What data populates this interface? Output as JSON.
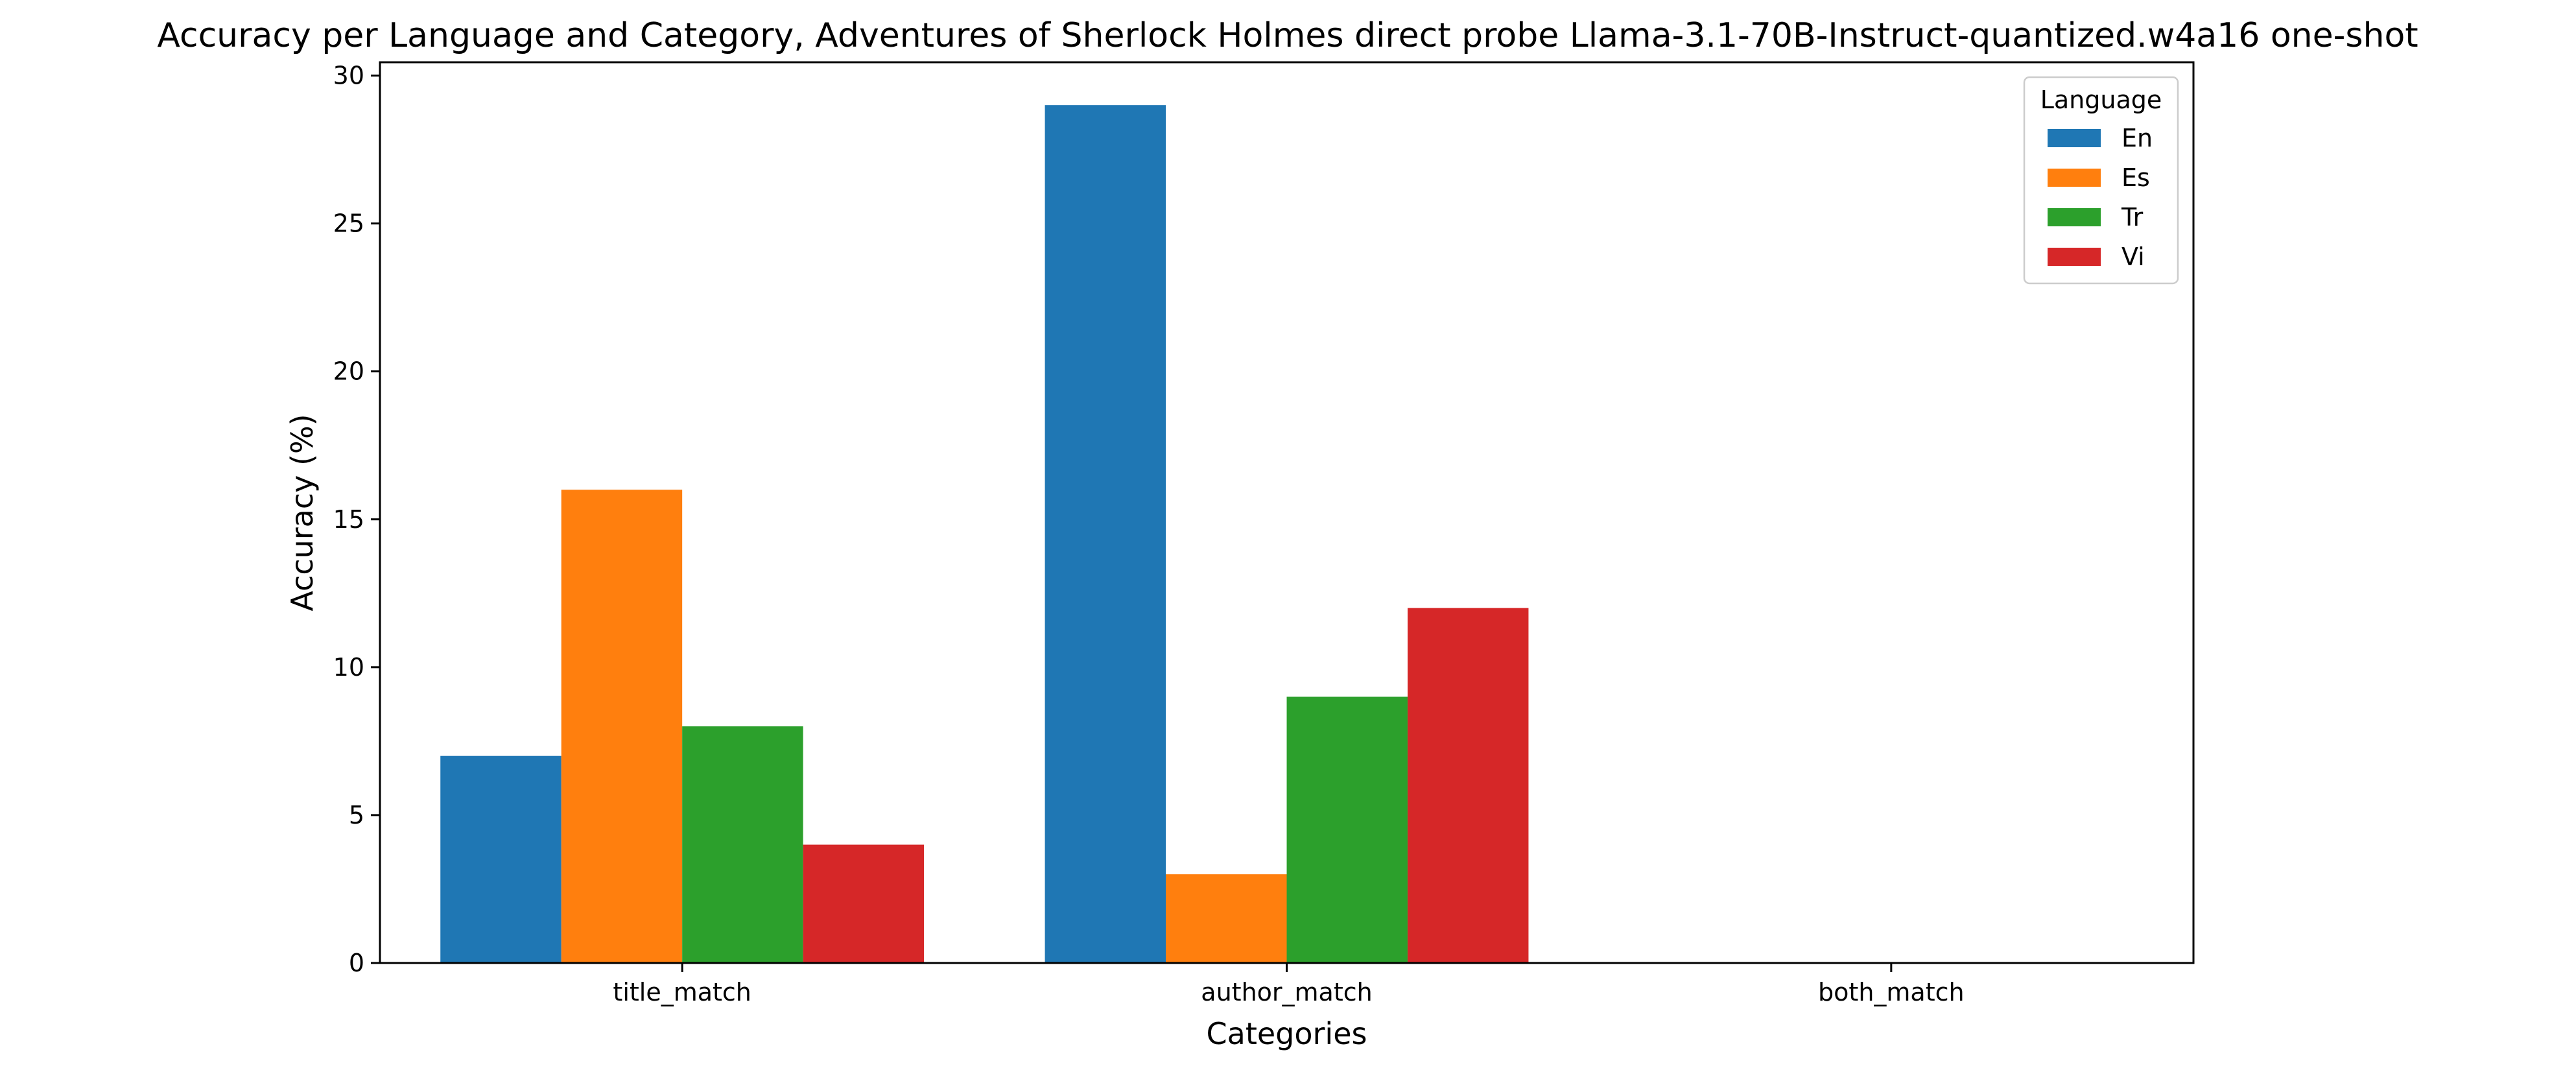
{
  "chart_data": {
    "type": "bar",
    "title": "Accuracy per Language and Category, Adventures of Sherlock Holmes direct probe Llama-3.1-70B-Instruct-quantized.w4a16 one-shot",
    "xlabel": "Categories",
    "ylabel": "Accuracy (%)",
    "categories": [
      "title_match",
      "author_match",
      "both_match"
    ],
    "series": [
      {
        "name": "En",
        "values": [
          7,
          29,
          0
        ],
        "color": "#1f77b4"
      },
      {
        "name": "Es",
        "values": [
          16,
          3,
          0
        ],
        "color": "#ff7f0e"
      },
      {
        "name": "Tr",
        "values": [
          8,
          9,
          0
        ],
        "color": "#2ca02c"
      },
      {
        "name": "Vi",
        "values": [
          4,
          12,
          0
        ],
        "color": "#d62728"
      }
    ],
    "ylim": [
      0,
      30.45
    ],
    "yticks": [
      0,
      5,
      10,
      15,
      20,
      25,
      30
    ],
    "grid": false,
    "legend": {
      "title": "Language",
      "placement": "top-right"
    }
  }
}
